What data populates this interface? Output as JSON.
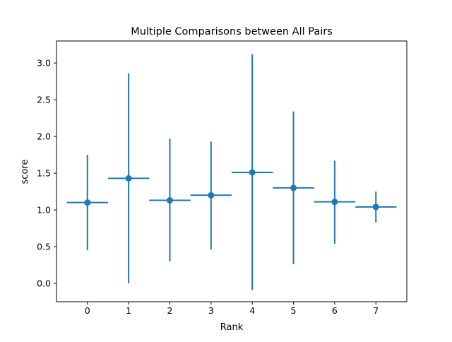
{
  "chart_data": {
    "type": "scatter",
    "title": "Multiple Comparisons between All Pairs",
    "xlabel": "Rank",
    "ylabel": "score",
    "xlim": [
      -0.75,
      7.75
    ],
    "ylim": [
      -0.25,
      3.3
    ],
    "xticks": [
      "0",
      "1",
      "2",
      "3",
      "4",
      "5",
      "6",
      "7"
    ],
    "yticks": [
      "0.0",
      "0.5",
      "1.0",
      "1.5",
      "2.0",
      "2.5",
      "3.0"
    ],
    "grid": false,
    "legend": "none",
    "series": [
      {
        "color": "#1f77b4",
        "points": [
          {
            "x": 0,
            "y": 1.1,
            "xerr": 0.5,
            "ylow": 0.45,
            "yhigh": 1.75
          },
          {
            "x": 1,
            "y": 1.43,
            "xerr": 0.5,
            "ylow": 0.0,
            "yhigh": 2.86
          },
          {
            "x": 2,
            "y": 1.13,
            "xerr": 0.5,
            "ylow": 0.3,
            "yhigh": 1.97
          },
          {
            "x": 3,
            "y": 1.2,
            "xerr": 0.5,
            "ylow": 0.46,
            "yhigh": 1.93
          },
          {
            "x": 4,
            "y": 1.51,
            "xerr": 0.5,
            "ylow": -0.09,
            "yhigh": 3.12
          },
          {
            "x": 5,
            "y": 1.3,
            "xerr": 0.5,
            "ylow": 0.26,
            "yhigh": 2.34
          },
          {
            "x": 6,
            "y": 1.11,
            "xerr": 0.5,
            "ylow": 0.54,
            "yhigh": 1.67
          },
          {
            "x": 7,
            "y": 1.04,
            "xerr": 0.5,
            "ylow": 0.83,
            "yhigh": 1.25
          }
        ]
      }
    ]
  }
}
